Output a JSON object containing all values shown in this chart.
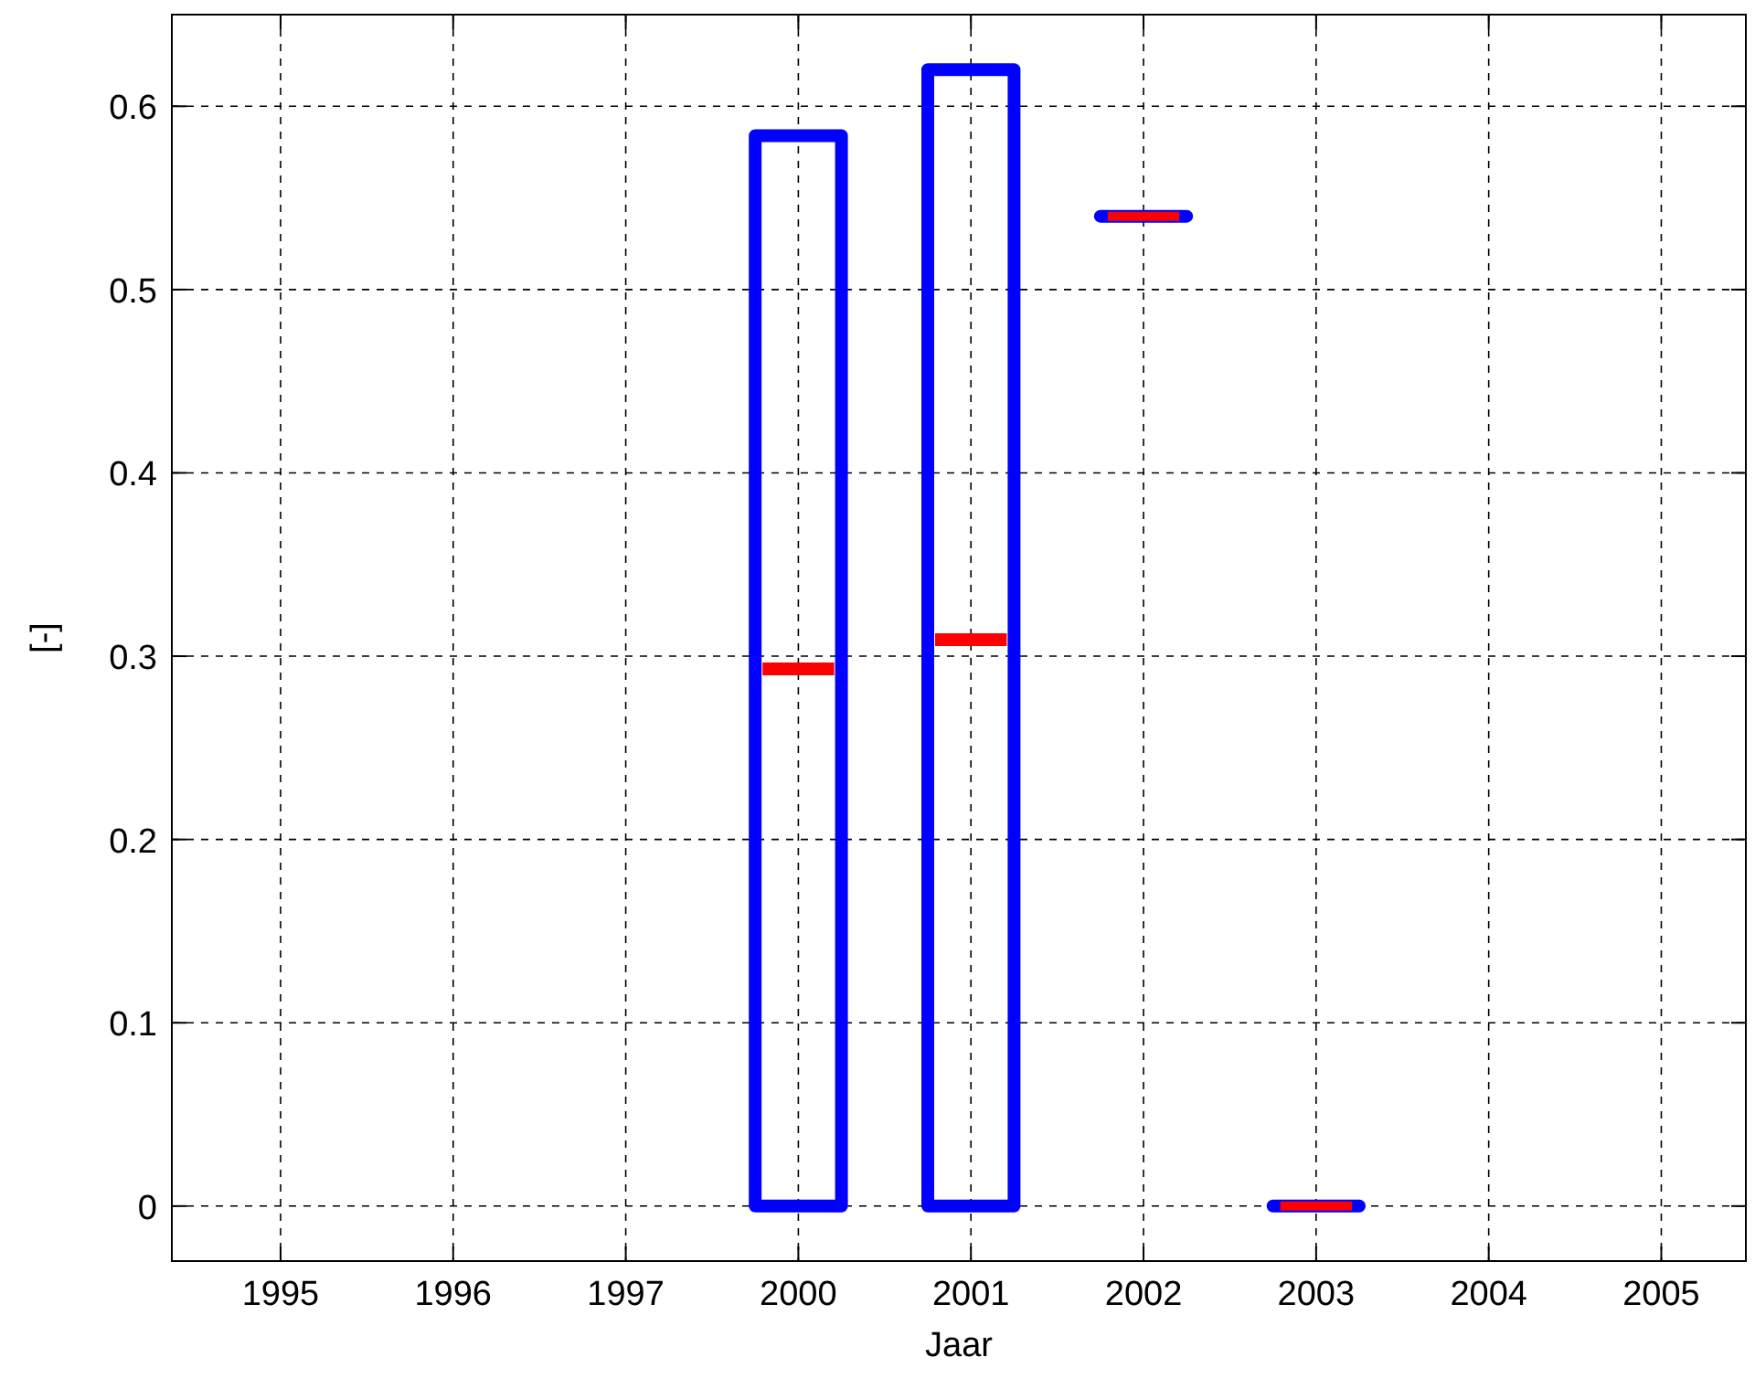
{
  "chart_data": {
    "type": "box",
    "xlabel": "Jaar",
    "ylabel": "[-]",
    "categories": [
      "1995",
      "1996",
      "1997",
      "2000",
      "2001",
      "2002",
      "2003",
      "2004",
      "2005"
    ],
    "series": [
      {
        "color": "#0000ff",
        "boxes": [
          null,
          null,
          null,
          {
            "low": 0,
            "q1": 0,
            "median": 0.293,
            "q3": 0.584,
            "high": 0.584
          },
          {
            "low": 0,
            "q1": 0,
            "median": 0.309,
            "q3": 0.62,
            "high": 0.62
          },
          {
            "low": 0.54,
            "q1": 0.54,
            "median": 0.54,
            "q3": 0.54,
            "high": 0.54
          },
          {
            "low": 0,
            "q1": 0,
            "median": 0,
            "q3": 0,
            "high": 0
          },
          null,
          null
        ]
      }
    ],
    "ylim": [
      -0.03,
      0.65
    ],
    "yticks": [
      0,
      0.1,
      0.2,
      0.3,
      0.4,
      0.5,
      0.6
    ],
    "grid": true
  }
}
